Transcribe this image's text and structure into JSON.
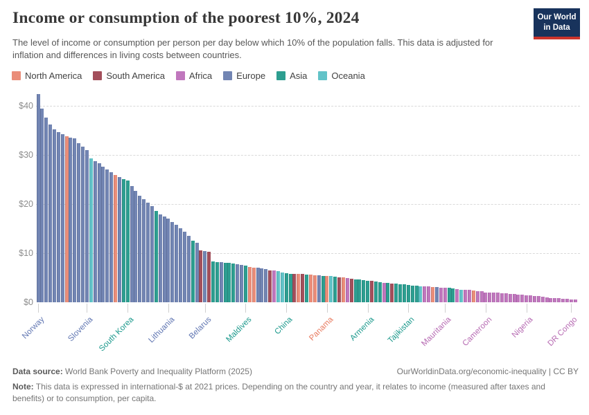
{
  "header": {
    "title": "Income or consumption of the poorest 10%, 2024",
    "subtitle": "The level of income or consumption per person per day below which 10% of the population falls. This data is adjusted for inflation and differences in living costs between countries.",
    "logo_line1": "Our World",
    "logo_line2": "in Data",
    "logo_bg": "#18335c",
    "logo_accent": "#cb342c"
  },
  "legend": {
    "items": [
      {
        "label": "North America",
        "color": "#EA8D79"
      },
      {
        "label": "South America",
        "color": "#A34F5B"
      },
      {
        "label": "Africa",
        "color": "#C077BD"
      },
      {
        "label": "Europe",
        "color": "#7285B3"
      },
      {
        "label": "Asia",
        "color": "#2D9E90"
      },
      {
        "label": "Oceania",
        "color": "#62C3C8"
      }
    ]
  },
  "chart_data": {
    "type": "bar",
    "title": "Income or consumption of the poorest 10%, 2024",
    "unit": "international-$ per day",
    "ylim": [
      0,
      42.5
    ],
    "yticks": [
      0,
      10,
      20,
      30,
      40
    ],
    "ytick_labels": [
      "$0",
      "$10",
      "$20",
      "$30",
      "$40"
    ],
    "grid": "horizontal dashed",
    "legend_position": "top",
    "sort": "descending",
    "continent_names": {
      "E": "Europe",
      "A": "Asia",
      "O": "Oceania",
      "N": "North America",
      "S": "South America",
      "F": "Africa"
    },
    "continent_colors": {
      "E": "#7285B3",
      "A": "#2D9E90",
      "O": "#62C3C8",
      "N": "#EA8D79",
      "S": "#A34F5B",
      "F": "#C077BD"
    },
    "label_colors": {
      "E": "#5E74B1",
      "A": "#19988B",
      "O": "#3BA8AE",
      "N": "#E87A5F",
      "S": "#8D4150",
      "F": "#B669B2"
    },
    "values": [
      42.3,
      39.4,
      37.6,
      36.1,
      35.2,
      34.6,
      34.2,
      33.7,
      33.5,
      33.3,
      32.4,
      31.6,
      31.0,
      29.3,
      28.7,
      28.2,
      27.6,
      27.0,
      26.4,
      25.9,
      25.4,
      25.1,
      24.8,
      23.6,
      22.6,
      21.6,
      20.9,
      20.2,
      19.5,
      18.6,
      17.9,
      17.4,
      17.0,
      16.3,
      15.7,
      15.1,
      14.3,
      13.5,
      12.5,
      12.1,
      10.5,
      10.4,
      10.2,
      8.3,
      8.2,
      8.1,
      8.0,
      8.0,
      7.9,
      7.8,
      7.6,
      7.4,
      7.2,
      7.1,
      7.0,
      6.9,
      6.8,
      6.5,
      6.4,
      6.3,
      6.1,
      5.9,
      5.8,
      5.8,
      5.7,
      5.7,
      5.6,
      5.6,
      5.5,
      5.5,
      5.4,
      5.4,
      5.3,
      5.2,
      5.1,
      5.0,
      4.9,
      4.8,
      4.7,
      4.6,
      4.5,
      4.4,
      4.3,
      4.2,
      4.1,
      4.0,
      3.9,
      3.8,
      3.8,
      3.7,
      3.6,
      3.5,
      3.4,
      3.4,
      3.3,
      3.2,
      3.2,
      3.1,
      3.1,
      3.0,
      3.0,
      2.9,
      2.8,
      2.7,
      2.6,
      2.5,
      2.5,
      2.4,
      2.3,
      2.2,
      2.0,
      2.0,
      1.9,
      1.9,
      1.8,
      1.8,
      1.7,
      1.7,
      1.6,
      1.5,
      1.4,
      1.4,
      1.3,
      1.2,
      1.1,
      1.0,
      0.9,
      0.9,
      0.8,
      0.7,
      0.7,
      0.6,
      0.5
    ],
    "continents": "EEEEEEENEEEEEOEEEEENEAAEEEEEEAEEEEEEEEAESESAAEAAAEEANNEEESFOOAASNSANNEANOASNFSAAAASAAFASAAAAAAOFFNEFFAAFOFFNFFFFFFFFFFFFFFFFFFFFFFFFF",
    "x_ticks": [
      {
        "i": 0,
        "label": "Norway",
        "c": "E",
        "value": 42.3
      },
      {
        "i": 12,
        "label": "Slovenia",
        "c": "E",
        "value": 31.0
      },
      {
        "i": 22,
        "label": "South Korea",
        "c": "A",
        "value": 24.8
      },
      {
        "i": 32,
        "label": "Lithuania",
        "c": "E",
        "value": 17.0
      },
      {
        "i": 41,
        "label": "Belarus",
        "c": "E",
        "value": 10.4
      },
      {
        "i": 51,
        "label": "Maldives",
        "c": "A",
        "value": 7.4
      },
      {
        "i": 61,
        "label": "China",
        "c": "A",
        "value": 5.9
      },
      {
        "i": 71,
        "label": "Panama",
        "c": "N",
        "value": 5.4
      },
      {
        "i": 81,
        "label": "Armenia",
        "c": "A",
        "value": 4.4
      },
      {
        "i": 91,
        "label": "Tajikistan",
        "c": "A",
        "value": 3.5
      },
      {
        "i": 100,
        "label": "Mauritania",
        "c": "F",
        "value": 3.0
      },
      {
        "i": 110,
        "label": "Cameroon",
        "c": "F",
        "value": 2.0
      },
      {
        "i": 120,
        "label": "Nigeria",
        "c": "F",
        "value": 1.4
      },
      {
        "i": 131,
        "label": "DR Congo",
        "c": "F",
        "value": 0.6
      }
    ]
  },
  "footer": {
    "data_source_label": "Data source:",
    "data_source": "World Bank Poverty and Inequality Platform (2025)",
    "link": "OurWorldinData.org/economic-inequality | CC BY",
    "note_label": "Note:",
    "note": "This data is expressed in international-$ at 2021 prices. Depending on the country and year, it relates to income (measured after taxes and benefits) or to consumption, per capita."
  }
}
